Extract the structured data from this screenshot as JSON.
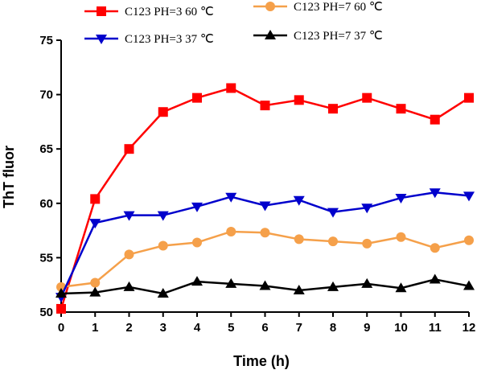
{
  "chart_data": {
    "type": "line",
    "xlabel": "Time (h)",
    "ylabel": "ThT fluor",
    "xlim": [
      0,
      12
    ],
    "ylim": [
      50,
      75
    ],
    "x_ticks": [
      0,
      1,
      2,
      3,
      4,
      5,
      6,
      7,
      8,
      9,
      10,
      11,
      12
    ],
    "y_ticks": [
      50,
      55,
      60,
      65,
      70,
      75
    ],
    "grid": false,
    "legend_position": "top",
    "x": [
      0,
      1,
      2,
      3,
      4,
      5,
      6,
      7,
      8,
      9,
      10,
      11,
      12
    ],
    "series": [
      {
        "name": "C123 PH=3 60 ℃",
        "color": "#ff0000",
        "marker": "square",
        "values": [
          50.3,
          60.4,
          65.0,
          68.4,
          69.7,
          70.6,
          69.0,
          69.5,
          68.7,
          69.7,
          68.7,
          67.7,
          69.7
        ]
      },
      {
        "name": "C123 PH=7 60 ℃",
        "color": "#f5a04a",
        "marker": "circle",
        "values": [
          52.3,
          52.7,
          55.3,
          56.1,
          56.4,
          57.4,
          57.3,
          56.7,
          56.5,
          56.3,
          56.9,
          55.9,
          56.6
        ]
      },
      {
        "name": "C123 PH=3 37 ℃",
        "color": "#0000cc",
        "marker": "triangle-down",
        "values": [
          51.4,
          58.2,
          58.9,
          58.9,
          59.7,
          60.6,
          59.8,
          60.3,
          59.2,
          59.6,
          60.5,
          61.0,
          60.7
        ]
      },
      {
        "name": "C123 PH=7 37 ℃",
        "color": "#000000",
        "marker": "triangle-up",
        "values": [
          51.7,
          51.8,
          52.3,
          51.7,
          52.8,
          52.6,
          52.4,
          52.0,
          52.3,
          52.6,
          52.2,
          53.0,
          52.4
        ]
      }
    ]
  }
}
